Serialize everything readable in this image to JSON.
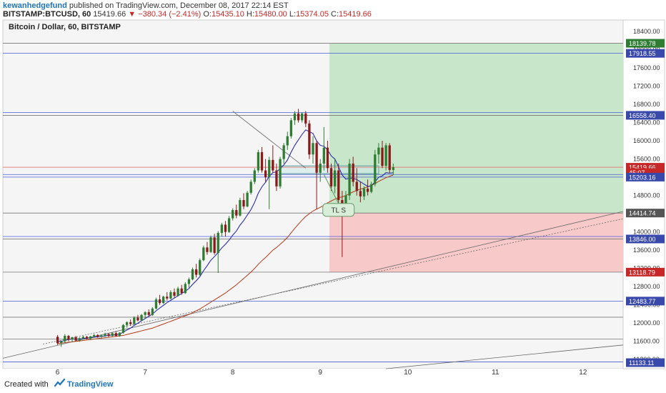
{
  "header": {
    "user": "kewanhedgefund",
    "published": " published on TradingView.com, December 08, 2017 22:14 EST",
    "symbol": "BITSTAMP:BTCUSD, 60",
    "last": "15419.66",
    "change": "▼ −380.34 (−2.41%)",
    "o_label": "O:",
    "o": "15435.10",
    "h_label": "H:",
    "h": "15480.00",
    "l_label": "L:",
    "l": "15374.05",
    "c_label": "C:",
    "c": "15419.66"
  },
  "title": "Bitcoin / Dollar, 60, BITSTAMP",
  "footer": {
    "created": "Created with",
    "brand": "TradingView"
  },
  "annotation": "TL S",
  "colors": {
    "up": "#2e7d32",
    "down": "#8b1a1a",
    "ma_fast": "#1a1aa8",
    "ma_slow": "#b23a1a",
    "profit_zone": "#c8e6c9",
    "loss_zone": "#f8c9c9",
    "blue_line": "#4a5ad8",
    "gray_line": "#555555"
  },
  "chart_data": {
    "type": "candlestick",
    "x_ticks": [
      {
        "x": 0,
        "label": "6"
      },
      {
        "x": 24,
        "label": "7"
      },
      {
        "x": 48,
        "label": "8"
      },
      {
        "x": 72,
        "label": "9"
      },
      {
        "x": 96,
        "label": "10"
      },
      {
        "x": 120,
        "label": "11"
      },
      {
        "x": 144,
        "label": "12"
      }
    ],
    "x_range": [
      -15,
      155
    ],
    "y_range": [
      11000,
      18650
    ],
    "y_ticks": [
      11200,
      11600,
      12000,
      12400,
      12800,
      13200,
      13600,
      14000,
      14400,
      14800,
      15200,
      15600,
      16000,
      16400,
      16800,
      17200,
      17600,
      18000,
      18400
    ],
    "price_tags": [
      {
        "value": 18139.78,
        "label": "18139.78",
        "kind": "green"
      },
      {
        "value": 17918.55,
        "label": "17918.55",
        "kind": "blue"
      },
      {
        "value": 16558.4,
        "label": "16558.40",
        "kind": "blue"
      },
      {
        "value": 15419.66,
        "label": "15419.66",
        "kind": "red"
      },
      {
        "value": 15300.0,
        "label": "45:07",
        "kind": "red"
      },
      {
        "value": 15203.16,
        "label": "15203.16",
        "kind": "blue"
      },
      {
        "value": 14414.74,
        "label": "14414.74",
        "kind": "gray"
      },
      {
        "value": 13846.0,
        "label": "13846.00",
        "kind": "blue"
      },
      {
        "value": 13118.79,
        "label": "13118.79",
        "kind": "red"
      },
      {
        "value": 12483.77,
        "label": "12483.77",
        "kind": "blue"
      },
      {
        "value": 11133.11,
        "label": "11133.11",
        "kind": "blue"
      }
    ],
    "h_lines": [
      {
        "value": 18139.78,
        "kind": "gray"
      },
      {
        "value": 17918.55,
        "kind": "blue"
      },
      {
        "value": 16620.0,
        "kind": "blue"
      },
      {
        "value": 16558.4,
        "kind": "gray"
      },
      {
        "value": 15419.66,
        "kind": "red"
      },
      {
        "value": 15260.0,
        "kind": "blue"
      },
      {
        "value": 15203.16,
        "kind": "blue"
      },
      {
        "value": 14414.74,
        "kind": "gray"
      },
      {
        "value": 13900.0,
        "kind": "blue"
      },
      {
        "value": 13846.0,
        "kind": "gray"
      },
      {
        "value": 13118.79,
        "kind": "gray"
      },
      {
        "value": 12483.77,
        "kind": "blue"
      },
      {
        "value": 12130.0,
        "kind": "gray"
      },
      {
        "value": 11650.0,
        "kind": "gray"
      },
      {
        "value": 11150.0,
        "kind": "blue"
      }
    ],
    "position": {
      "x_start": 74.5,
      "entry": 14414.74,
      "target": 18139.78,
      "stop": 13118.79
    },
    "entry_box": {
      "x1": 61,
      "x2": 88,
      "y1": 15280,
      "y2": 15450
    },
    "trend_lines": [
      {
        "x1": -15,
        "y1": 11230,
        "x2": 155,
        "y2": 14450,
        "style": "solid"
      },
      {
        "x1": -4,
        "y1": 11540,
        "x2": 155,
        "y2": 14290,
        "style": "dotted"
      },
      {
        "x1": 48,
        "y1": 16650,
        "x2": 68,
        "y2": 15400,
        "style": "solid"
      },
      {
        "x1": 90,
        "y1": 11000,
        "x2": 155,
        "y2": 11520,
        "style": "solid"
      }
    ],
    "ohlc": [
      [
        11700,
        11740,
        11520,
        11560
      ],
      [
        11560,
        11620,
        11480,
        11600
      ],
      [
        11600,
        11760,
        11570,
        11720
      ],
      [
        11720,
        11740,
        11600,
        11640
      ],
      [
        11640,
        11700,
        11580,
        11690
      ],
      [
        11690,
        11720,
        11600,
        11620
      ],
      [
        11620,
        11690,
        11590,
        11670
      ],
      [
        11670,
        11720,
        11640,
        11700
      ],
      [
        11700,
        11720,
        11640,
        11660
      ],
      [
        11660,
        11720,
        11630,
        11710
      ],
      [
        11710,
        11760,
        11680,
        11740
      ],
      [
        11740,
        11760,
        11680,
        11700
      ],
      [
        11700,
        11750,
        11680,
        11730
      ],
      [
        11730,
        11790,
        11700,
        11760
      ],
      [
        11760,
        11780,
        11690,
        11720
      ],
      [
        11720,
        11800,
        11700,
        11780
      ],
      [
        11780,
        11820,
        11700,
        11720
      ],
      [
        11720,
        11800,
        11700,
        11790
      ],
      [
        11790,
        11980,
        11770,
        11960
      ],
      [
        11960,
        12040,
        11900,
        12020
      ],
      [
        12020,
        12080,
        11940,
        11980
      ],
      [
        11980,
        12150,
        11960,
        12120
      ],
      [
        12120,
        12180,
        12040,
        12060
      ],
      [
        12060,
        12200,
        12040,
        12180
      ],
      [
        12180,
        12260,
        12100,
        12240
      ],
      [
        12240,
        12300,
        12150,
        12180
      ],
      [
        12180,
        12350,
        12160,
        12320
      ],
      [
        12320,
        12560,
        12300,
        12520
      ],
      [
        12520,
        12620,
        12400,
        12440
      ],
      [
        12440,
        12600,
        12420,
        12580
      ],
      [
        12580,
        12680,
        12500,
        12540
      ],
      [
        12540,
        12720,
        12520,
        12680
      ],
      [
        12680,
        12760,
        12560,
        12600
      ],
      [
        12600,
        12800,
        12580,
        12760
      ],
      [
        12760,
        12840,
        12620,
        12660
      ],
      [
        12660,
        12900,
        12640,
        12860
      ],
      [
        12860,
        13000,
        12780,
        12960
      ],
      [
        12960,
        13220,
        12940,
        13180
      ],
      [
        13180,
        13300,
        13000,
        13060
      ],
      [
        13060,
        13420,
        13040,
        13380
      ],
      [
        13380,
        13700,
        13360,
        13660
      ],
      [
        13660,
        13780,
        13500,
        13560
      ],
      [
        13560,
        13920,
        13540,
        13880
      ],
      [
        13880,
        13960,
        13500,
        13540
      ],
      [
        13540,
        14020,
        13100,
        13980
      ],
      [
        13980,
        14200,
        13900,
        14160
      ],
      [
        14160,
        14240,
        13900,
        14000
      ],
      [
        14000,
        14350,
        13980,
        14300
      ],
      [
        14300,
        14520,
        14250,
        14480
      ],
      [
        14480,
        14600,
        14300,
        14360
      ],
      [
        14360,
        14750,
        14340,
        14700
      ],
      [
        14700,
        14850,
        14500,
        14560
      ],
      [
        14560,
        14900,
        14540,
        14860
      ],
      [
        14860,
        15150,
        14820,
        15100
      ],
      [
        15100,
        15400,
        15050,
        15350
      ],
      [
        15350,
        15800,
        15300,
        15750
      ],
      [
        15750,
        15860,
        15300,
        15350
      ],
      [
        15350,
        15600,
        15100,
        15200
      ],
      [
        15200,
        15650,
        14500,
        15580
      ],
      [
        15580,
        15900,
        15300,
        15350
      ],
      [
        15350,
        15500,
        14900,
        15000
      ],
      [
        15000,
        15650,
        14950,
        15600
      ],
      [
        15600,
        15950,
        15500,
        15900
      ],
      [
        15900,
        16200,
        15800,
        16100
      ],
      [
        16100,
        16500,
        16050,
        16450
      ],
      [
        16450,
        16650,
        16350,
        16600
      ],
      [
        16600,
        16700,
        16400,
        16450
      ],
      [
        16450,
        16620,
        16400,
        16600
      ],
      [
        16600,
        16650,
        16300,
        16380
      ],
      [
        16380,
        16450,
        15600,
        15700
      ],
      [
        15700,
        16100,
        15500,
        15950
      ],
      [
        15950,
        16000,
        14500,
        15300
      ],
      [
        15300,
        15600,
        15100,
        15500
      ],
      [
        15500,
        16300,
        15350,
        15850
      ],
      [
        15850,
        16000,
        15300,
        15400
      ],
      [
        15400,
        15500,
        14900,
        15000
      ],
      [
        15000,
        15600,
        14850,
        15350
      ],
      [
        15350,
        15500,
        14550,
        14700
      ],
      [
        14700,
        14900,
        13450,
        14600
      ],
      [
        14600,
        14900,
        14350,
        14800
      ],
      [
        14800,
        15600,
        14700,
        15500
      ],
      [
        15500,
        15650,
        15000,
        15100
      ],
      [
        15100,
        15400,
        14800,
        14900
      ],
      [
        14900,
        15100,
        14650,
        14780
      ],
      [
        14780,
        15000,
        14700,
        14950
      ],
      [
        14950,
        15150,
        14800,
        14880
      ],
      [
        14880,
        15100,
        14850,
        15050
      ],
      [
        15050,
        15800,
        15000,
        15700
      ],
      [
        15700,
        15950,
        15500,
        15850
      ],
      [
        15850,
        16000,
        15400,
        15450
      ],
      [
        15450,
        15950,
        15350,
        15900
      ],
      [
        15900,
        15950,
        15300,
        15360
      ],
      [
        15360,
        15500,
        15250,
        15420
      ]
    ],
    "ma_fast": [
      11600,
      11600,
      11620,
      11640,
      11650,
      11650,
      11650,
      11660,
      11670,
      11680,
      11690,
      11700,
      11710,
      11720,
      11730,
      11740,
      11745,
      11760,
      11800,
      11850,
      11890,
      11950,
      12000,
      12050,
      12100,
      12150,
      12200,
      12270,
      12330,
      12390,
      12450,
      12500,
      12550,
      12600,
      12650,
      12700,
      12760,
      12850,
      12930,
      13020,
      13150,
      13260,
      13380,
      13460,
      13550,
      13650,
      13730,
      13820,
      13930,
      14020,
      14150,
      14250,
      14370,
      14490,
      14650,
      14850,
      14990,
      15090,
      15220,
      15300,
      15320,
      15390,
      15470,
      15580,
      15750,
      15900,
      16020,
      16140,
      16240,
      16200,
      16160,
      16000,
      15900,
      15880,
      15800,
      15670,
      15600,
      15430,
      15250,
      15160,
      15180,
      15180,
      15150,
      15100,
      15050,
      15000,
      15010,
      15100,
      15200,
      15230,
      15300,
      15290,
      15300
    ],
    "ma_slow": [
      11550,
      11560,
      11570,
      11580,
      11590,
      11600,
      11610,
      11620,
      11630,
      11640,
      11650,
      11660,
      11670,
      11680,
      11690,
      11700,
      11710,
      11720,
      11730,
      11750,
      11770,
      11790,
      11810,
      11830,
      11850,
      11870,
      11890,
      11920,
      11950,
      11980,
      12010,
      12040,
      12070,
      12100,
      12130,
      12160,
      12190,
      12230,
      12270,
      12310,
      12360,
      12410,
      12460,
      12510,
      12560,
      12610,
      12660,
      12720,
      12780,
      12840,
      12910,
      12980,
      13050,
      13120,
      13200,
      13290,
      13370,
      13440,
      13520,
      13600,
      13660,
      13730,
      13800,
      13880,
      13980,
      14080,
      14170,
      14260,
      14340,
      14400,
      14460,
      14500,
      14540,
      14590,
      14640,
      14680,
      14720,
      14750,
      14770,
      14800,
      14840,
      14880,
      14910,
      14940,
      14960,
      14990,
      15020,
      15060,
      15110,
      15150,
      15190,
      15220,
      15250
    ]
  }
}
